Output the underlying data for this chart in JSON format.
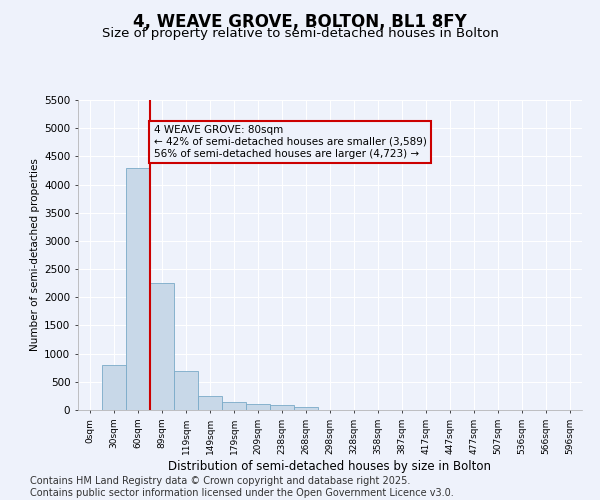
{
  "title": "4, WEAVE GROVE, BOLTON, BL1 8FY",
  "subtitle": "Size of property relative to semi-detached houses in Bolton",
  "xlabel": "Distribution of semi-detached houses by size in Bolton",
  "ylabel": "Number of semi-detached properties",
  "bar_labels": [
    "0sqm",
    "30sqm",
    "60sqm",
    "89sqm",
    "119sqm",
    "149sqm",
    "179sqm",
    "209sqm",
    "238sqm",
    "268sqm",
    "298sqm",
    "328sqm",
    "358sqm",
    "387sqm",
    "417sqm",
    "447sqm",
    "477sqm",
    "507sqm",
    "536sqm",
    "566sqm",
    "596sqm"
  ],
  "bar_values": [
    5,
    800,
    4300,
    2250,
    700,
    250,
    150,
    100,
    80,
    50,
    0,
    0,
    0,
    0,
    0,
    0,
    0,
    0,
    0,
    0,
    0
  ],
  "bar_color": "#c8d8e8",
  "bar_edgecolor": "#7aaac8",
  "vline_x": 2.5,
  "vline_color": "#cc0000",
  "annotation_text": "4 WEAVE GROVE: 80sqm\n← 42% of semi-detached houses are smaller (3,589)\n56% of semi-detached houses are larger (4,723) →",
  "annotation_box_color": "#cc0000",
  "annotation_text_color": "#000000",
  "ylim": [
    0,
    5500
  ],
  "yticks": [
    0,
    500,
    1000,
    1500,
    2000,
    2500,
    3000,
    3500,
    4000,
    4500,
    5000,
    5500
  ],
  "background_color": "#eef2fb",
  "grid_color": "#ffffff",
  "footer_line1": "Contains HM Land Registry data © Crown copyright and database right 2025.",
  "footer_line2": "Contains public sector information licensed under the Open Government Licence v3.0.",
  "title_fontsize": 12,
  "subtitle_fontsize": 9.5,
  "footer_fontsize": 7
}
